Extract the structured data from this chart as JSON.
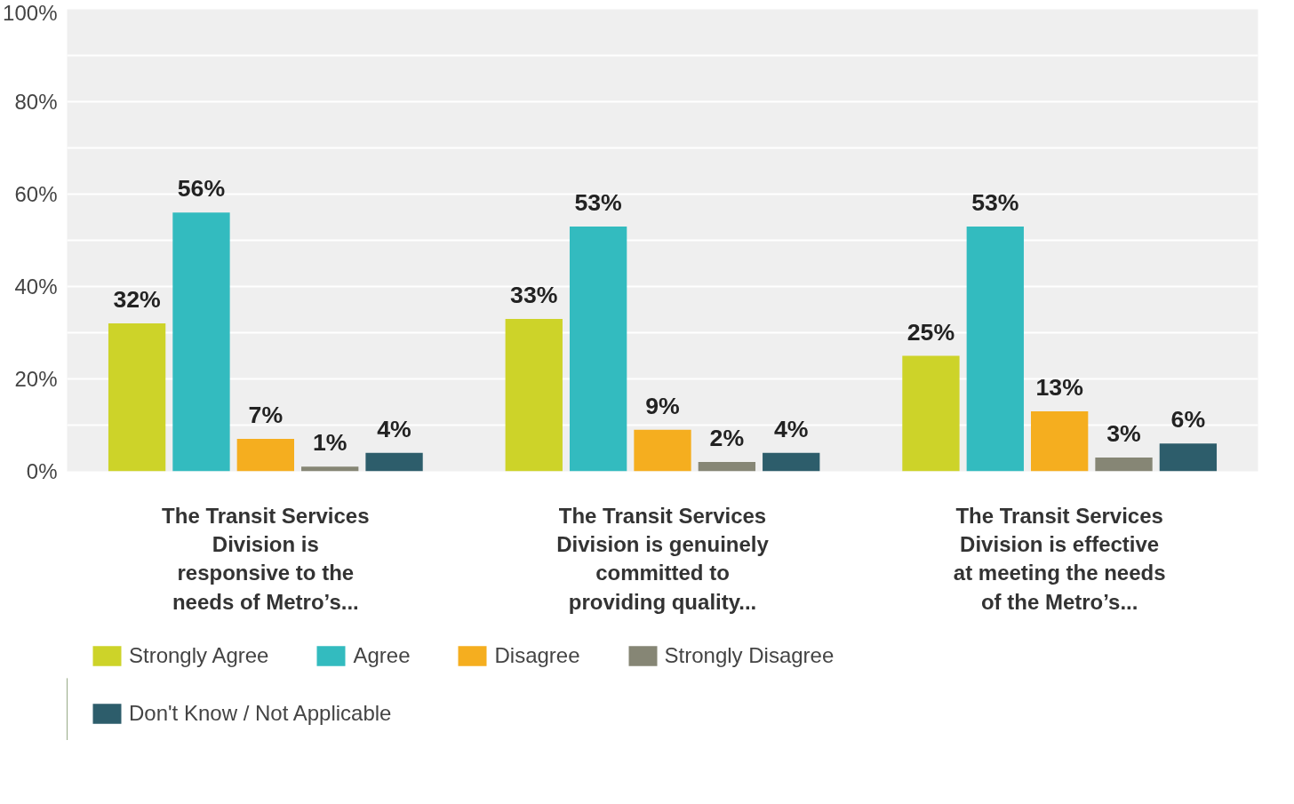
{
  "chart_data": {
    "type": "bar",
    "categories": [
      "The Transit Services\nDivision is\nresponsive to the\nneeds of Metro’s...",
      "The Transit Services\nDivision is genuinely\ncommitted to\nproviding quality...",
      "The Transit Services\nDivision is effective\nat meeting the needs\nof the Metro’s..."
    ],
    "series": [
      {
        "name": "Strongly Agree",
        "color": "#cdd329",
        "values": [
          32,
          33,
          25
        ],
        "value_labels": [
          "32%",
          "33%",
          "25%"
        ]
      },
      {
        "name": "Agree",
        "color": "#33bbbf",
        "values": [
          56,
          53,
          53
        ],
        "value_labels": [
          "56%",
          "53%",
          "53%"
        ]
      },
      {
        "name": "Disagree",
        "color": "#f5ae1f",
        "values": [
          7,
          9,
          13
        ],
        "value_labels": [
          "7%",
          "9%",
          "13%"
        ]
      },
      {
        "name": "Strongly Disagree",
        "color": "#868675",
        "values": [
          1,
          2,
          3
        ],
        "value_labels": [
          "1%",
          "2%",
          "3%"
        ]
      },
      {
        "name": "Don't Know / Not Applicable",
        "color": "#2d5d6b",
        "values": [
          4,
          4,
          6
        ],
        "value_labels": [
          "4%",
          "4%",
          "6%"
        ]
      }
    ],
    "ylim": [
      0,
      100
    ],
    "yticks": [
      {
        "value": 0,
        "label": "0%"
      },
      {
        "value": 10,
        "label": null
      },
      {
        "value": 20,
        "label": "20%"
      },
      {
        "value": 30,
        "label": null
      },
      {
        "value": 40,
        "label": "40%"
      },
      {
        "value": 50,
        "label": null
      },
      {
        "value": 60,
        "label": "60%"
      },
      {
        "value": 70,
        "label": null
      },
      {
        "value": 80,
        "label": "80%"
      },
      {
        "value": 90,
        "label": null
      },
      {
        "value": 100,
        "label": "100%"
      }
    ],
    "grid": "y",
    "legend": "bottom"
  }
}
